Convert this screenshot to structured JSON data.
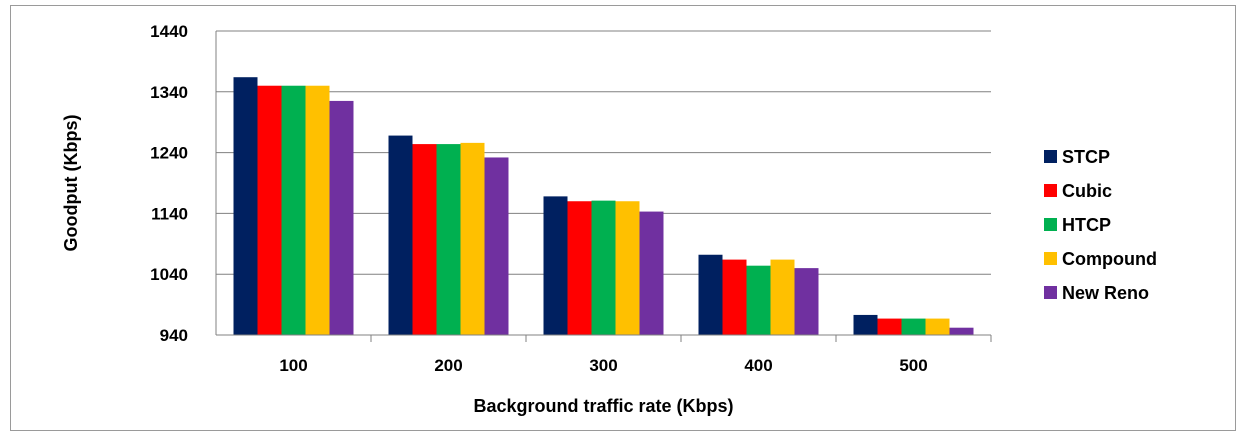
{
  "chart_data": {
    "type": "bar",
    "title": "",
    "xlabel": "Background traffic rate (Kbps)",
    "ylabel": "Goodput (Kbps)",
    "ylim": [
      940,
      1440
    ],
    "yticks": [
      940,
      1040,
      1140,
      1240,
      1340,
      1440
    ],
    "categories": [
      "100",
      "200",
      "300",
      "400",
      "500"
    ],
    "grid": true,
    "legend_position": "right",
    "series": [
      {
        "name": "STCP",
        "color": "#002060",
        "values": [
          1364,
          1268,
          1168,
          1072,
          973
        ]
      },
      {
        "name": "Cubic",
        "color": "#ff0000",
        "values": [
          1350,
          1254,
          1160,
          1064,
          967
        ]
      },
      {
        "name": "HTCP",
        "color": "#00b050",
        "values": [
          1350,
          1254,
          1161,
          1054,
          967
        ]
      },
      {
        "name": "Compound",
        "color": "#ffc000",
        "values": [
          1350,
          1256,
          1160,
          1064,
          967
        ]
      },
      {
        "name": "New Reno",
        "color": "#7030a0",
        "values": [
          1325,
          1232,
          1143,
          1050,
          952
        ]
      }
    ]
  }
}
